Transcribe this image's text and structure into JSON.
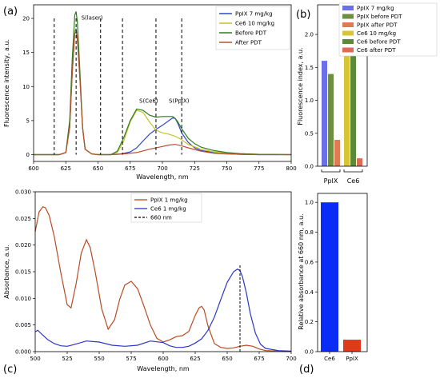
{
  "colors": {
    "pp_blue": "#2f45c8",
    "ce6_yellow": "#c8c02a",
    "before_green": "#2e7d1f",
    "after_brown": "#b5502a",
    "abs_brown": "#b84a24",
    "abs_blue": "#2b35c8",
    "bar_blue": "#0a2cf6",
    "bar_red": "#e03a1a"
  },
  "chart_data": [
    {
      "id": "a",
      "panel_label": "(a)",
      "type": "line",
      "xlabel": "Wavelength, nm",
      "ylabel": "Fluorescence intensity, a.u.",
      "xlim": [
        600,
        800
      ],
      "ylim": [
        -1,
        22
      ],
      "xticks": [
        "600",
        "625",
        "650",
        "675",
        "700",
        "725",
        "750",
        "775",
        "800"
      ],
      "yticks": [
        "0",
        "5",
        "10",
        "15",
        "20"
      ],
      "legend_position": "top-right",
      "series": [
        {
          "name": "PpIX 7 mg/kg",
          "color": "#2f45c8",
          "x": [
            600,
            615,
            620,
            625,
            628,
            630,
            632,
            633,
            634,
            636,
            638,
            640,
            645,
            650,
            660,
            668,
            675,
            680,
            685,
            690,
            695,
            700,
            705,
            708,
            710,
            712,
            715,
            720,
            725,
            730,
            740,
            750,
            760,
            775,
            800
          ],
          "y": [
            0,
            0,
            0,
            0.3,
            4,
            12,
            18,
            18.5,
            17,
            11,
            4,
            0.8,
            0.1,
            0,
            0,
            0.1,
            0.4,
            1.0,
            2.0,
            3.0,
            3.7,
            4.3,
            5.0,
            5.4,
            5.3,
            4.6,
            3.2,
            1.8,
            1.0,
            0.6,
            0.3,
            0.15,
            0.05,
            0,
            0
          ]
        },
        {
          "name": "Ce6 10 mg/kg",
          "color": "#c8c02a",
          "x": [
            600,
            615,
            620,
            625,
            628,
            630,
            632,
            633,
            634,
            636,
            638,
            640,
            645,
            650,
            660,
            665,
            670,
            675,
            680,
            685,
            690,
            695,
            700,
            705,
            710,
            715,
            720,
            730,
            740,
            750,
            775,
            800
          ],
          "y": [
            0,
            0,
            0,
            0.3,
            4,
            12,
            18,
            18.3,
            17,
            11,
            4,
            0.8,
            0.1,
            0,
            0,
            0.3,
            2.0,
            4.8,
            6.5,
            6.2,
            4.8,
            3.6,
            3.2,
            3.0,
            2.7,
            2.2,
            1.5,
            0.8,
            0.4,
            0.2,
            0.05,
            0
          ]
        },
        {
          "name": "Before PDT",
          "color": "#2e7d1f",
          "x": [
            600,
            615,
            620,
            625,
            628,
            630,
            632,
            633,
            634,
            636,
            638,
            640,
            645,
            650,
            660,
            665,
            670,
            675,
            680,
            685,
            690,
            695,
            700,
            705,
            708,
            710,
            712,
            715,
            720,
            725,
            730,
            740,
            750,
            760,
            775,
            800
          ],
          "y": [
            0,
            0,
            0,
            0.3,
            5,
            14,
            20.5,
            21,
            19.5,
            12,
            4,
            0.8,
            0.1,
            0,
            0,
            0.5,
            2.5,
            5,
            6.7,
            6.5,
            5.8,
            5.5,
            5.6,
            5.6,
            5.6,
            5.3,
            4.8,
            3.8,
            2.4,
            1.6,
            1.1,
            0.6,
            0.3,
            0.15,
            0.05,
            0
          ]
        },
        {
          "name": "After PDT",
          "color": "#b5502a",
          "x": [
            600,
            615,
            620,
            625,
            628,
            630,
            632,
            633,
            634,
            636,
            638,
            640,
            645,
            650,
            660,
            670,
            680,
            690,
            700,
            705,
            710,
            715,
            720,
            730,
            740,
            750,
            775,
            800
          ],
          "y": [
            0,
            0,
            0,
            0.3,
            4,
            12,
            17.8,
            18,
            17,
            11,
            4,
            0.8,
            0.1,
            0,
            0,
            0.1,
            0.3,
            0.8,
            1.2,
            1.4,
            1.5,
            1.3,
            1.0,
            0.5,
            0.2,
            0.1,
            0,
            0
          ]
        }
      ],
      "vlines": [
        616,
        633,
        652,
        669,
        695,
        715
      ],
      "annotations": [
        {
          "text": "S(laser)",
          "x": 637,
          "y": 19.8
        },
        {
          "text": "S(Ce6)",
          "x": 682,
          "y": 7.6
        },
        {
          "text": "S(PpIX)",
          "x": 705,
          "y": 7.6
        }
      ]
    },
    {
      "id": "b",
      "panel_label": "(b)",
      "type": "bar",
      "ylabel": "Fluorescence index, a.u.",
      "ylim": [
        0,
        2.45
      ],
      "yticks": [
        "0.0",
        "0.5",
        "1.0",
        "1.5",
        "2.0"
      ],
      "groups": [
        "PpIX",
        "Ce6"
      ],
      "legend_position": "top",
      "series": [
        {
          "name": "PpIX 7 mg/kg",
          "color": "#6b6fe8",
          "value": 1.6,
          "group": "PpIX"
        },
        {
          "name": "PpIX before PDT",
          "color": "#6e8f3f",
          "value": 1.4,
          "group": "PpIX"
        },
        {
          "name": "PpIX after PDT",
          "color": "#e07a55",
          "value": 0.4,
          "group": "PpIX"
        },
        {
          "name": "Ce6 10 mg/kg",
          "color": "#d8c535",
          "value": 2.3,
          "group": "Ce6"
        },
        {
          "name": "Ce6 before PDT",
          "color": "#5a8a3a",
          "value": 2.1,
          "group": "Ce6"
        },
        {
          "name": "Ce6 after PDT",
          "color": "#e06a55",
          "value": 0.12,
          "group": "Ce6"
        }
      ]
    },
    {
      "id": "c",
      "panel_label": "(c)",
      "type": "line",
      "xlabel": "Wavelength, nm",
      "ylabel": "Absorbance, a.u.",
      "xlim": [
        500,
        700
      ],
      "ylim": [
        0,
        0.03
      ],
      "xticks": [
        "500",
        "525",
        "550",
        "575",
        "600",
        "625",
        "650",
        "675",
        "700"
      ],
      "yticks": [
        "0.000",
        "0.005",
        "0.010",
        "0.015",
        "0.020",
        "0.025",
        "0.030"
      ],
      "legend_position": "top-center",
      "series": [
        {
          "name": "PpIX 1 mg/kg",
          "color": "#b84a24",
          "x": [
            500,
            503,
            506,
            508,
            511,
            515,
            520,
            525,
            528,
            532,
            536,
            540,
            543,
            547,
            552,
            557,
            562,
            566,
            570,
            575,
            580,
            585,
            590,
            595,
            600,
            605,
            610,
            615,
            620,
            625,
            628,
            630,
            632,
            635,
            640,
            645,
            650,
            655,
            660,
            665,
            670,
            675,
            680,
            690,
            700
          ],
          "y": [
            0.0225,
            0.0262,
            0.0272,
            0.027,
            0.0255,
            0.0215,
            0.0148,
            0.0088,
            0.0082,
            0.0128,
            0.0185,
            0.021,
            0.0195,
            0.0148,
            0.008,
            0.0042,
            0.006,
            0.0098,
            0.0125,
            0.0132,
            0.0118,
            0.0085,
            0.005,
            0.0025,
            0.0018,
            0.0022,
            0.0028,
            0.003,
            0.0038,
            0.0068,
            0.0082,
            0.0085,
            0.0078,
            0.0048,
            0.0015,
            0.0008,
            0.0006,
            0.0007,
            0.001,
            0.0012,
            0.001,
            0.0005,
            0.0002,
            0.0001,
            0.0
          ]
        },
        {
          "name": "Ce6 1 mg/kg",
          "color": "#2b35c8",
          "x": [
            500,
            502,
            505,
            510,
            515,
            520,
            525,
            530,
            540,
            550,
            560,
            570,
            580,
            590,
            600,
            605,
            610,
            615,
            620,
            625,
            630,
            635,
            640,
            645,
            650,
            655,
            658,
            660,
            662,
            665,
            668,
            672,
            676,
            680,
            690,
            700
          ],
          "y": [
            0.0037,
            0.004,
            0.0033,
            0.0022,
            0.0015,
            0.0011,
            0.001,
            0.0013,
            0.002,
            0.0018,
            0.0012,
            0.001,
            0.0012,
            0.002,
            0.0017,
            0.0011,
            0.0008,
            0.0008,
            0.001,
            0.0016,
            0.0024,
            0.004,
            0.0065,
            0.0098,
            0.013,
            0.015,
            0.0155,
            0.0152,
            0.014,
            0.011,
            0.0072,
            0.0035,
            0.0014,
            0.0006,
            0.0002,
            0.0001
          ]
        }
      ],
      "vline": {
        "name": "660 nm",
        "x": 660,
        "color": "#000000"
      }
    },
    {
      "id": "d",
      "panel_label": "(d)",
      "type": "bar",
      "ylabel": "Relative absorbance at 660 nm, a.u.",
      "ylim": [
        0,
        1.06
      ],
      "yticks": [
        "0.0",
        "0.2",
        "0.4",
        "0.6",
        "0.8",
        "1.0"
      ],
      "categories": [
        "Ce6",
        "PpIX"
      ],
      "values": [
        1.0,
        0.08
      ],
      "colors": [
        "#0a2cf6",
        "#e03a1a"
      ]
    }
  ]
}
